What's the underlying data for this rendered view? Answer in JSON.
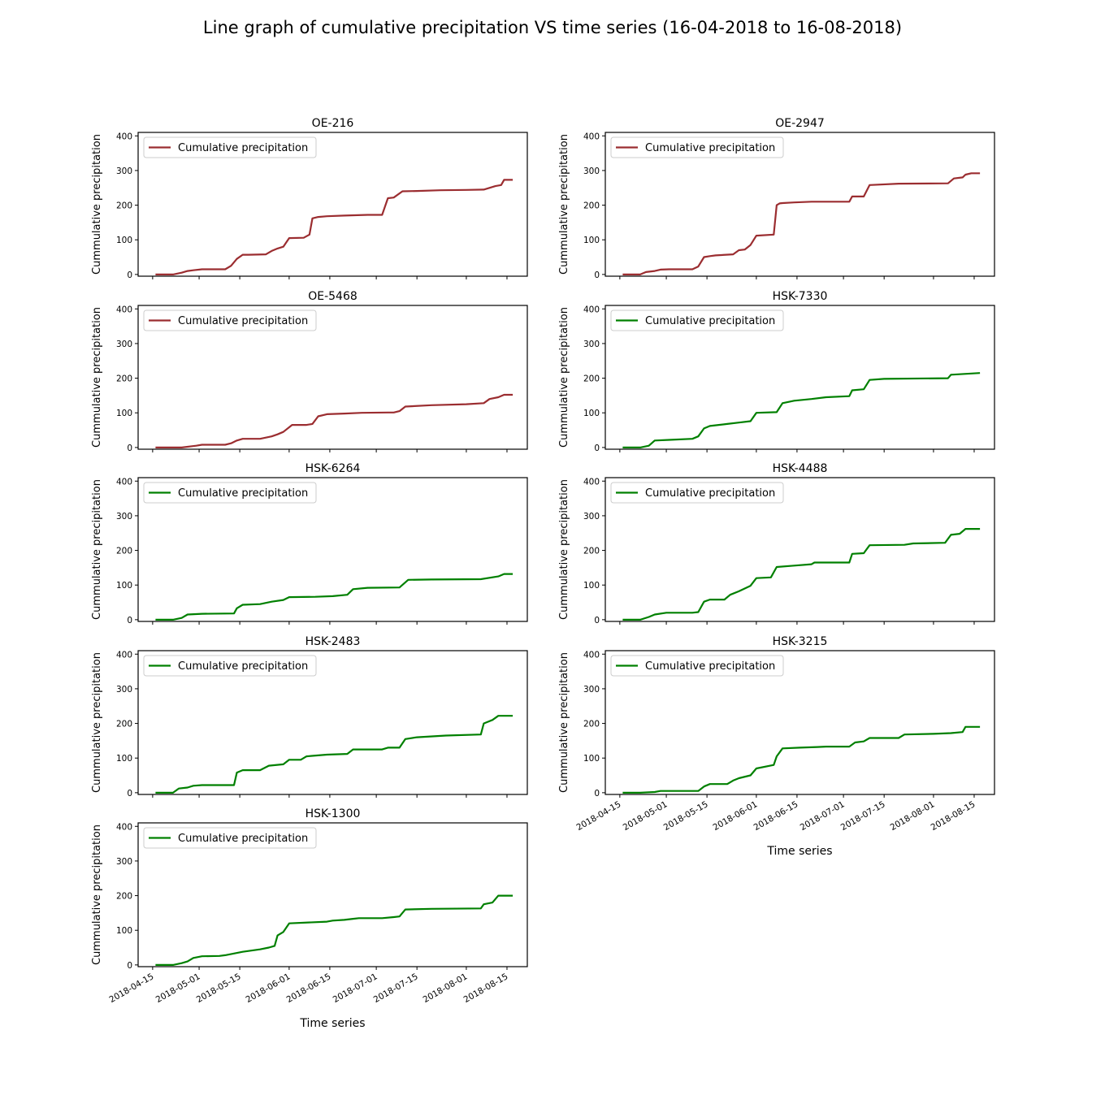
{
  "figure": {
    "title": "Line graph of cumulative precipitation VS time series (16-04-2018 to 16-08-2018)"
  },
  "chart_data": [
    {
      "type": "line",
      "title": "OE-216",
      "ylabel": "Cummulative precipitation",
      "xlabel": "",
      "ylim": [
        -5,
        410
      ],
      "yticks": [
        0,
        100,
        200,
        300,
        400
      ],
      "legend": "top-left",
      "color": "#9b2d30",
      "series": [
        {
          "name": "Cumulative precipitation",
          "x": [
            "2018-04-16",
            "2018-04-22",
            "2018-04-25",
            "2018-04-27",
            "2018-04-29",
            "2018-05-02",
            "2018-05-04",
            "2018-05-10",
            "2018-05-12",
            "2018-05-14",
            "2018-05-16",
            "2018-05-18",
            "2018-05-24",
            "2018-05-26",
            "2018-05-28",
            "2018-05-30",
            "2018-06-01",
            "2018-06-06",
            "2018-06-08",
            "2018-06-09",
            "2018-06-11",
            "2018-06-14",
            "2018-06-20",
            "2018-06-28",
            "2018-07-03",
            "2018-07-05",
            "2018-07-07",
            "2018-07-10",
            "2018-07-15",
            "2018-07-23",
            "2018-08-01",
            "2018-08-07",
            "2018-08-11",
            "2018-08-13",
            "2018-08-14",
            "2018-08-17"
          ],
          "y": [
            0,
            0,
            5,
            10,
            12,
            15,
            15,
            15,
            25,
            45,
            57,
            57,
            58,
            68,
            75,
            80,
            105,
            106,
            115,
            162,
            166,
            168,
            170,
            172,
            172,
            220,
            222,
            240,
            241,
            243,
            244,
            245,
            255,
            258,
            273,
            273
          ]
        }
      ]
    },
    {
      "type": "line",
      "title": "OE-2947",
      "ylabel": "Cummulative precipitation",
      "xlabel": "",
      "ylim": [
        -5,
        410
      ],
      "yticks": [
        0,
        100,
        200,
        300,
        400
      ],
      "legend": "top-left",
      "color": "#9b2d30",
      "series": [
        {
          "name": "Cumulative precipitation",
          "x": [
            "2018-04-16",
            "2018-04-22",
            "2018-04-24",
            "2018-04-27",
            "2018-04-29",
            "2018-05-02",
            "2018-05-10",
            "2018-05-12",
            "2018-05-14",
            "2018-05-16",
            "2018-05-18",
            "2018-05-24",
            "2018-05-26",
            "2018-05-28",
            "2018-05-30",
            "2018-06-01",
            "2018-06-07",
            "2018-06-08",
            "2018-06-09",
            "2018-06-10",
            "2018-06-14",
            "2018-06-20",
            "2018-06-25",
            "2018-07-03",
            "2018-07-04",
            "2018-07-08",
            "2018-07-10",
            "2018-07-20",
            "2018-08-06",
            "2018-08-08",
            "2018-08-11",
            "2018-08-12",
            "2018-08-14",
            "2018-08-17"
          ],
          "y": [
            0,
            0,
            7,
            10,
            14,
            15,
            15,
            23,
            50,
            53,
            55,
            58,
            70,
            72,
            85,
            112,
            115,
            200,
            205,
            206,
            208,
            210,
            210,
            210,
            225,
            225,
            258,
            262,
            263,
            277,
            280,
            288,
            292,
            292
          ]
        }
      ]
    },
    {
      "type": "line",
      "title": "OE-5468",
      "ylabel": "Cummulative precipitation",
      "xlabel": "",
      "ylim": [
        -5,
        410
      ],
      "yticks": [
        0,
        100,
        200,
        300,
        400
      ],
      "legend": "top-left",
      "color": "#9b2d30",
      "series": [
        {
          "name": "Cumulative precipitation",
          "x": [
            "2018-04-16",
            "2018-04-25",
            "2018-04-30",
            "2018-05-02",
            "2018-05-10",
            "2018-05-12",
            "2018-05-14",
            "2018-05-16",
            "2018-05-22",
            "2018-05-26",
            "2018-05-28",
            "2018-05-30",
            "2018-06-02",
            "2018-06-07",
            "2018-06-09",
            "2018-06-11",
            "2018-06-14",
            "2018-06-20",
            "2018-06-26",
            "2018-07-05",
            "2018-07-07",
            "2018-07-09",
            "2018-07-11",
            "2018-07-20",
            "2018-08-01",
            "2018-08-07",
            "2018-08-09",
            "2018-08-12",
            "2018-08-14",
            "2018-08-17"
          ],
          "y": [
            0,
            0,
            5,
            8,
            8,
            12,
            20,
            25,
            25,
            32,
            38,
            45,
            65,
            65,
            68,
            90,
            96,
            98,
            100,
            101,
            101,
            105,
            118,
            122,
            125,
            128,
            140,
            145,
            152,
            152
          ]
        }
      ]
    },
    {
      "type": "line",
      "title": "HSK-7330",
      "ylabel": "Cummulative precipitation",
      "xlabel": "",
      "ylim": [
        -5,
        410
      ],
      "yticks": [
        0,
        100,
        200,
        300,
        400
      ],
      "legend": "top-left",
      "color": "#008000",
      "series": [
        {
          "name": "Cumulative precipitation",
          "x": [
            "2018-04-16",
            "2018-04-22",
            "2018-04-25",
            "2018-04-27",
            "2018-05-02",
            "2018-05-10",
            "2018-05-12",
            "2018-05-14",
            "2018-05-16",
            "2018-05-22",
            "2018-05-26",
            "2018-05-30",
            "2018-06-01",
            "2018-06-08",
            "2018-06-10",
            "2018-06-14",
            "2018-06-20",
            "2018-06-25",
            "2018-07-03",
            "2018-07-04",
            "2018-07-08",
            "2018-07-10",
            "2018-07-15",
            "2018-08-06",
            "2018-08-07",
            "2018-08-17"
          ],
          "y": [
            0,
            0,
            5,
            20,
            22,
            25,
            32,
            55,
            62,
            68,
            72,
            76,
            100,
            102,
            128,
            135,
            140,
            145,
            148,
            165,
            168,
            195,
            198,
            200,
            210,
            215
          ]
        }
      ]
    },
    {
      "type": "line",
      "title": "HSK-6264",
      "ylabel": "Cummulative precipitation",
      "xlabel": "",
      "ylim": [
        -5,
        410
      ],
      "yticks": [
        0,
        100,
        200,
        300,
        400
      ],
      "legend": "top-left",
      "color": "#008000",
      "series": [
        {
          "name": "Cumulative precipitation",
          "x": [
            "2018-04-16",
            "2018-04-22",
            "2018-04-25",
            "2018-04-27",
            "2018-05-02",
            "2018-05-13",
            "2018-05-14",
            "2018-05-16",
            "2018-05-22",
            "2018-05-26",
            "2018-05-30",
            "2018-06-01",
            "2018-06-10",
            "2018-06-16",
            "2018-06-21",
            "2018-06-23",
            "2018-06-28",
            "2018-07-09",
            "2018-07-12",
            "2018-07-20",
            "2018-08-06",
            "2018-08-12",
            "2018-08-14",
            "2018-08-17"
          ],
          "y": [
            0,
            0,
            5,
            15,
            17,
            18,
            33,
            43,
            45,
            52,
            57,
            65,
            66,
            68,
            72,
            88,
            92,
            93,
            115,
            116,
            117,
            125,
            132,
            132
          ]
        }
      ]
    },
    {
      "type": "line",
      "title": "HSK-4488",
      "ylabel": "Cummulative precipitation",
      "xlabel": "",
      "ylim": [
        -5,
        410
      ],
      "yticks": [
        0,
        100,
        200,
        300,
        400
      ],
      "legend": "top-left",
      "color": "#008000",
      "series": [
        {
          "name": "Cumulative precipitation",
          "x": [
            "2018-04-16",
            "2018-04-22",
            "2018-04-25",
            "2018-04-27",
            "2018-05-01",
            "2018-05-10",
            "2018-05-12",
            "2018-05-14",
            "2018-05-16",
            "2018-05-21",
            "2018-05-23",
            "2018-05-26",
            "2018-05-30",
            "2018-06-01",
            "2018-06-06",
            "2018-06-08",
            "2018-06-14",
            "2018-06-20",
            "2018-06-21",
            "2018-07-03",
            "2018-07-04",
            "2018-07-08",
            "2018-07-10",
            "2018-07-22",
            "2018-07-25",
            "2018-08-05",
            "2018-08-07",
            "2018-08-10",
            "2018-08-12",
            "2018-08-17"
          ],
          "y": [
            0,
            0,
            8,
            15,
            20,
            20,
            22,
            52,
            58,
            58,
            72,
            82,
            98,
            120,
            122,
            152,
            156,
            160,
            165,
            165,
            190,
            192,
            215,
            216,
            220,
            222,
            245,
            248,
            262,
            262
          ]
        }
      ]
    },
    {
      "type": "line",
      "title": "HSK-2483",
      "ylabel": "Cummulative precipitation",
      "xlabel": "",
      "ylim": [
        -5,
        410
      ],
      "yticks": [
        0,
        100,
        200,
        300,
        400
      ],
      "legend": "top-left",
      "color": "#008000",
      "series": [
        {
          "name": "Cumulative precipitation",
          "x": [
            "2018-04-16",
            "2018-04-22",
            "2018-04-24",
            "2018-04-27",
            "2018-04-29",
            "2018-05-02",
            "2018-05-13",
            "2018-05-14",
            "2018-05-16",
            "2018-05-22",
            "2018-05-25",
            "2018-05-30",
            "2018-06-01",
            "2018-06-05",
            "2018-06-07",
            "2018-06-14",
            "2018-06-21",
            "2018-06-23",
            "2018-07-03",
            "2018-07-05",
            "2018-07-09",
            "2018-07-11",
            "2018-07-15",
            "2018-07-25",
            "2018-08-06",
            "2018-08-07",
            "2018-08-10",
            "2018-08-12",
            "2018-08-17"
          ],
          "y": [
            0,
            0,
            12,
            15,
            20,
            22,
            22,
            58,
            65,
            65,
            78,
            82,
            95,
            95,
            105,
            110,
            112,
            125,
            125,
            130,
            130,
            155,
            160,
            165,
            168,
            200,
            210,
            222,
            222
          ]
        }
      ]
    },
    {
      "type": "line",
      "title": "HSK-3215",
      "ylabel": "Cummulative precipitation",
      "xlabel": "",
      "ylim": [
        -5,
        410
      ],
      "yticks": [
        0,
        100,
        200,
        300,
        400
      ],
      "legend": "top-left",
      "color": "#008000",
      "series": [
        {
          "name": "Cumulative precipitation",
          "x": [
            "2018-04-16",
            "2018-04-22",
            "2018-04-27",
            "2018-04-29",
            "2018-05-12",
            "2018-05-14",
            "2018-05-16",
            "2018-05-22",
            "2018-05-24",
            "2018-05-26",
            "2018-05-30",
            "2018-06-01",
            "2018-06-07",
            "2018-06-08",
            "2018-06-10",
            "2018-06-16",
            "2018-06-22",
            "2018-06-25",
            "2018-07-03",
            "2018-07-05",
            "2018-07-08",
            "2018-07-10",
            "2018-07-20",
            "2018-07-22",
            "2018-08-01",
            "2018-08-07",
            "2018-08-11",
            "2018-08-12",
            "2018-08-17"
          ],
          "y": [
            0,
            0,
            2,
            5,
            5,
            18,
            25,
            25,
            35,
            42,
            50,
            70,
            80,
            105,
            128,
            130,
            132,
            133,
            133,
            145,
            148,
            158,
            158,
            168,
            170,
            172,
            175,
            190,
            190
          ]
        }
      ]
    },
    {
      "type": "line",
      "title": "HSK-1300",
      "ylabel": "Cummulative precipitation",
      "xlabel": "Time series",
      "ylim": [
        -5,
        410
      ],
      "yticks": [
        0,
        100,
        200,
        300,
        400
      ],
      "legend": "top-left",
      "color": "#008000",
      "series": [
        {
          "name": "Cumulative precipitation",
          "x": [
            "2018-04-16",
            "2018-04-22",
            "2018-04-25",
            "2018-04-27",
            "2018-04-29",
            "2018-05-02",
            "2018-05-08",
            "2018-05-10",
            "2018-05-16",
            "2018-05-22",
            "2018-05-25",
            "2018-05-27",
            "2018-05-28",
            "2018-05-30",
            "2018-06-01",
            "2018-06-14",
            "2018-06-16",
            "2018-06-20",
            "2018-06-23",
            "2018-06-25",
            "2018-07-03",
            "2018-07-07",
            "2018-07-09",
            "2018-07-11",
            "2018-07-20",
            "2018-08-06",
            "2018-08-07",
            "2018-08-10",
            "2018-08-12",
            "2018-08-17"
          ],
          "y": [
            0,
            0,
            5,
            10,
            20,
            25,
            26,
            28,
            38,
            45,
            50,
            55,
            85,
            95,
            120,
            125,
            128,
            130,
            133,
            135,
            135,
            138,
            140,
            160,
            162,
            163,
            175,
            180,
            200,
            200
          ]
        }
      ]
    }
  ],
  "x_axis": {
    "ticks": [
      "2018-04-15",
      "2018-05-01",
      "2018-05-15",
      "2018-06-01",
      "2018-06-15",
      "2018-07-01",
      "2018-07-15",
      "2018-08-01",
      "2018-08-15"
    ],
    "range": [
      "2018-04-10",
      "2018-08-22"
    ],
    "label": "Time series"
  }
}
